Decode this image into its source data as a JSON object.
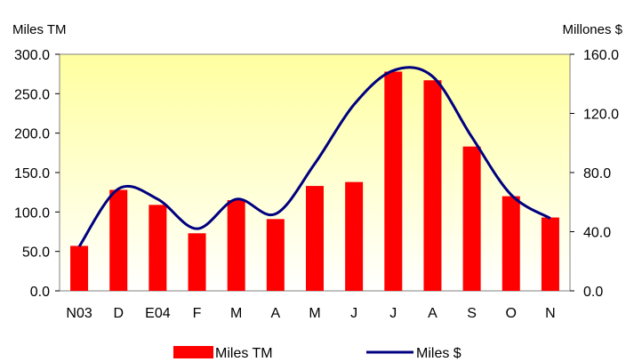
{
  "chart_data": {
    "type": "bar+line",
    "categories": [
      "N03",
      "D",
      "E04",
      "F",
      "M",
      "A",
      "M",
      "J",
      "J",
      "A",
      "S",
      "O",
      "N"
    ],
    "series": [
      {
        "name": "Miles TM",
        "type": "bar",
        "axis": "left",
        "color": "#ff0000",
        "values": [
          57,
          128,
          109,
          73,
          115,
          91,
          133,
          138,
          278,
          267,
          183,
          120,
          93
        ]
      },
      {
        "name": "Miles $",
        "type": "line",
        "axis": "right",
        "color": "#000080",
        "values": [
          30,
          69,
          62,
          42,
          62,
          52,
          86,
          126,
          149,
          145,
          104,
          65,
          49
        ]
      }
    ],
    "y_left": {
      "label": "Miles TM",
      "range": [
        0,
        300
      ],
      "ticks": [
        "0.0",
        "50.0",
        "100.0",
        "150.0",
        "200.0",
        "250.0",
        "300.0"
      ]
    },
    "y_right": {
      "label": "Millones $",
      "range": [
        0,
        160
      ],
      "ticks": [
        "0.0",
        "40.0",
        "80.0",
        "120.0",
        "160.0"
      ]
    },
    "plot_background_gradient": [
      "#ffffa0",
      "#ffffff"
    ],
    "grid": false,
    "legend_position": "bottom"
  }
}
